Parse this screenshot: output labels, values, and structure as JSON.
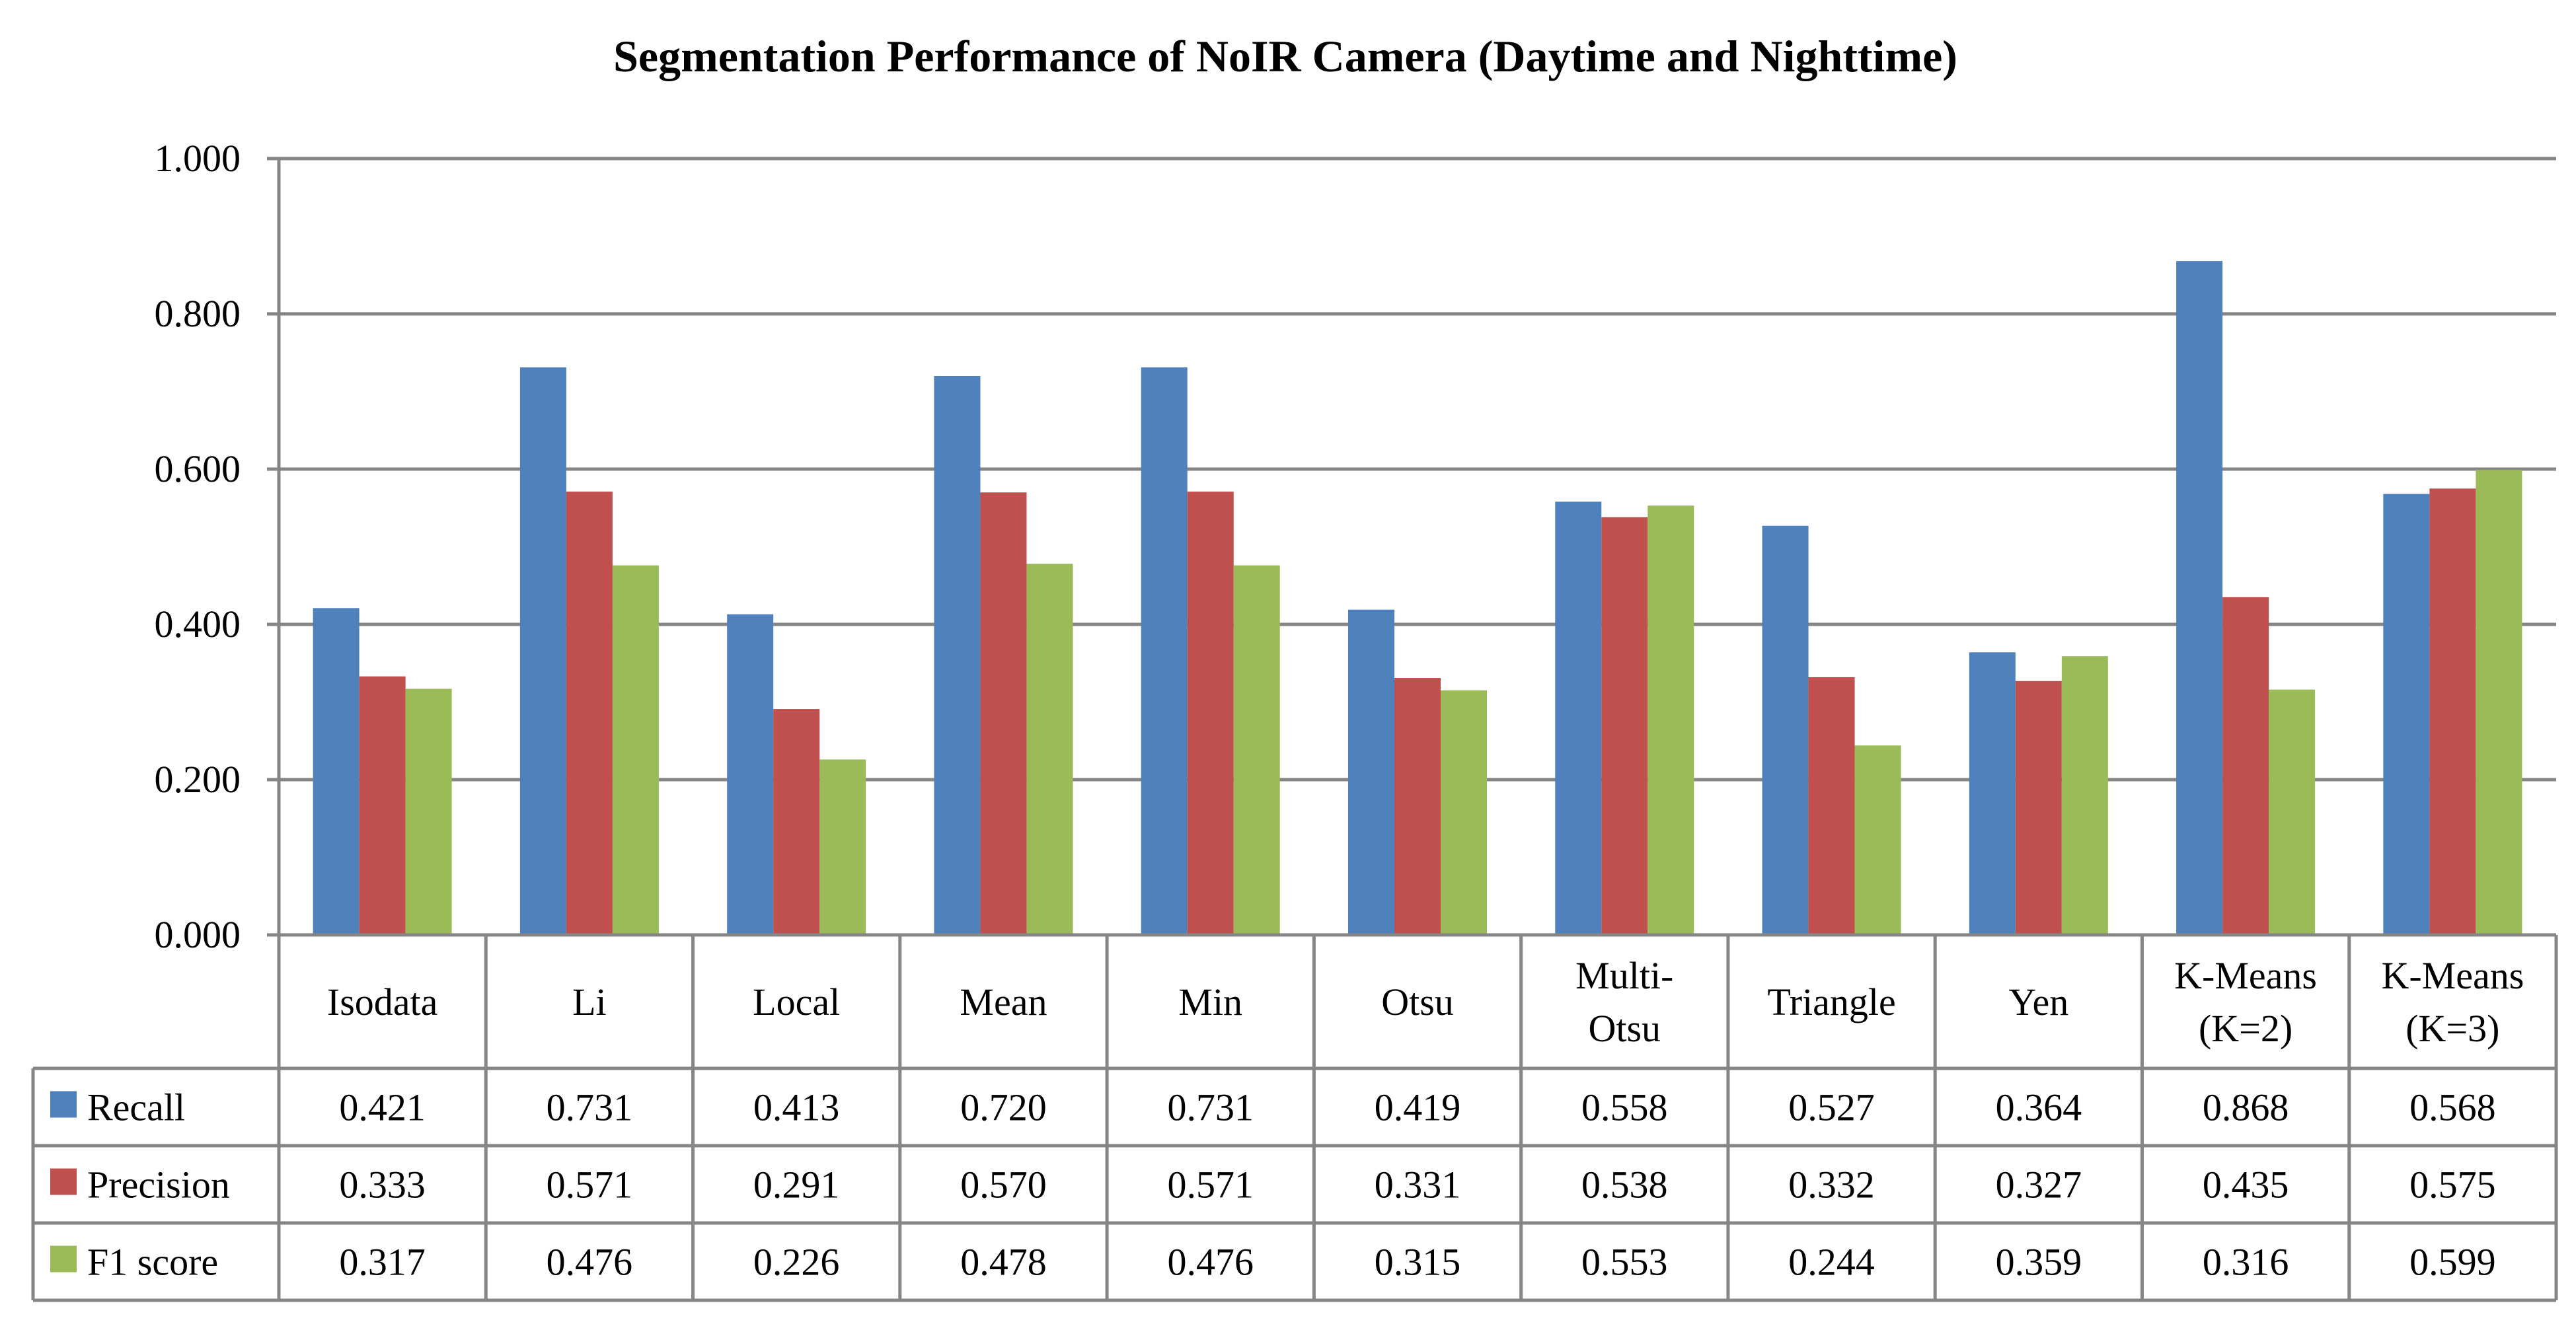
{
  "chart_data": {
    "type": "bar",
    "title": "Segmentation  Performance of NoIR Camera (Daytime and Nighttime)",
    "xlabel": "",
    "ylabel": "",
    "ylim": [
      0,
      1
    ],
    "yticks": [
      "0.000",
      "0.200",
      "0.400",
      "0.600",
      "0.800",
      "1.000"
    ],
    "grid": true,
    "legend": "data-table-left",
    "categories": [
      [
        "Isodata"
      ],
      [
        "Li"
      ],
      [
        "Local"
      ],
      [
        "Mean"
      ],
      [
        "Min"
      ],
      [
        "Otsu"
      ],
      [
        "Multi-",
        "Otsu"
      ],
      [
        "Triangle"
      ],
      [
        "Yen"
      ],
      [
        "K-Means",
        "(K=2)"
      ],
      [
        "K-Means",
        "(K=3)"
      ]
    ],
    "series": [
      {
        "name": "Recall",
        "color": "#4F81BD",
        "values": [
          0.421,
          0.731,
          0.413,
          0.72,
          0.731,
          0.419,
          0.558,
          0.527,
          0.364,
          0.868,
          0.568
        ],
        "labels": [
          "0.421",
          "0.731",
          "0.413",
          "0.720",
          "0.731",
          "0.419",
          "0.558",
          "0.527",
          "0.364",
          "0.868",
          "0.568"
        ]
      },
      {
        "name": "Precision",
        "color": "#C0504D",
        "values": [
          0.333,
          0.571,
          0.291,
          0.57,
          0.571,
          0.331,
          0.538,
          0.332,
          0.327,
          0.435,
          0.575
        ],
        "labels": [
          "0.333",
          "0.571",
          "0.291",
          "0.570",
          "0.571",
          "0.331",
          "0.538",
          "0.332",
          "0.327",
          "0.435",
          "0.575"
        ]
      },
      {
        "name": "F1 score",
        "color": "#9BBB59",
        "values": [
          0.317,
          0.476,
          0.226,
          0.478,
          0.476,
          0.315,
          0.553,
          0.244,
          0.359,
          0.316,
          0.599
        ],
        "labels": [
          "0.317",
          "0.476",
          "0.226",
          "0.478",
          "0.476",
          "0.315",
          "0.553",
          "0.244",
          "0.359",
          "0.316",
          "0.599"
        ]
      }
    ]
  }
}
